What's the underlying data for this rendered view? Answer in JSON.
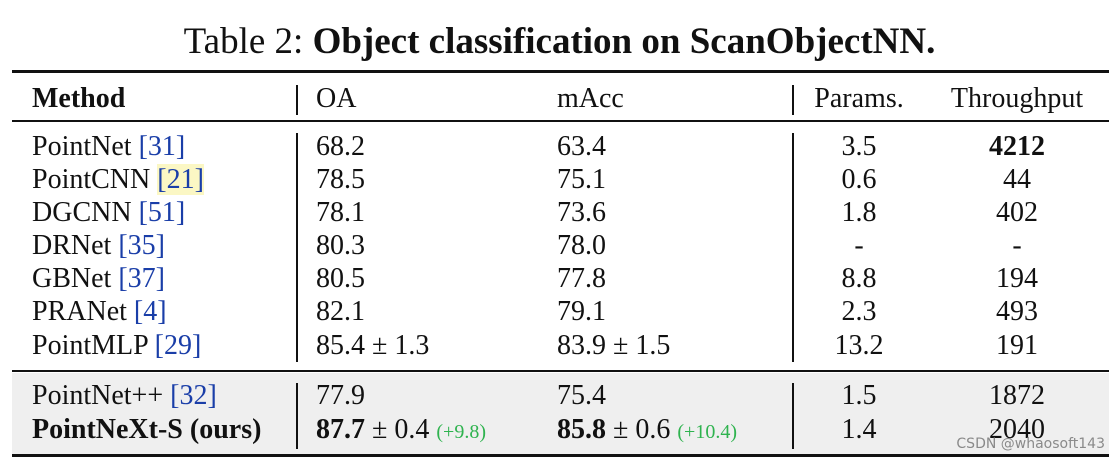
{
  "caption": {
    "prefix": "Table 2:",
    "title": "Object classification on ScanObjectNN."
  },
  "columns": {
    "method": "Method",
    "oa": "OA",
    "macc": "mAcc",
    "params": "Params.",
    "throughput": "Throughput"
  },
  "rows": [
    {
      "name": "PointNet",
      "ref": "[31]",
      "oa": "68.2",
      "macc": "63.4",
      "params": "3.5",
      "throughput": "4212"
    },
    {
      "name": "PointCNN",
      "ref": "[21]",
      "oa": "78.5",
      "macc": "75.1",
      "params": "0.6",
      "throughput": "44"
    },
    {
      "name": "DGCNN",
      "ref": "[51]",
      "oa": "78.1",
      "macc": "73.6",
      "params": "1.8",
      "throughput": "402"
    },
    {
      "name": "DRNet",
      "ref": "[35]",
      "oa": "80.3",
      "macc": "78.0",
      "params": "-",
      "throughput": "-"
    },
    {
      "name": "GBNet",
      "ref": "[37]",
      "oa": "80.5",
      "macc": "77.8",
      "params": "8.8",
      "throughput": "194"
    },
    {
      "name": "PRANet",
      "ref": "[4]",
      "oa": "82.1",
      "macc": "79.1",
      "params": "2.3",
      "throughput": "493"
    },
    {
      "name": "PointMLP",
      "ref": "[29]",
      "oa": "85.4 ± 1.3",
      "macc": "83.9 ± 1.5",
      "params": "13.2",
      "throughput": "191"
    }
  ],
  "ours_rows": [
    {
      "name": "PointNet++",
      "ref": "[32]",
      "oa": "77.9",
      "macc": "75.4",
      "params": "1.5",
      "throughput": "1872"
    },
    {
      "name": "PointNeXt-S (ours)",
      "oa_main": "87.7",
      "oa_pm": " ± 0.4 ",
      "oa_delta": "(+9.8)",
      "macc_main": "85.8",
      "macc_pm": " ± 0.6 ",
      "macc_delta": "(+10.4)",
      "params": "1.4",
      "throughput": "2040"
    }
  ],
  "watermark": "CSDN @whaosoft143",
  "colors": {
    "ref_link": "#1a3ea8",
    "delta": "#2fb34f",
    "shaded_band": "#efefef",
    "ref_highlight": "#fbf7c4"
  }
}
